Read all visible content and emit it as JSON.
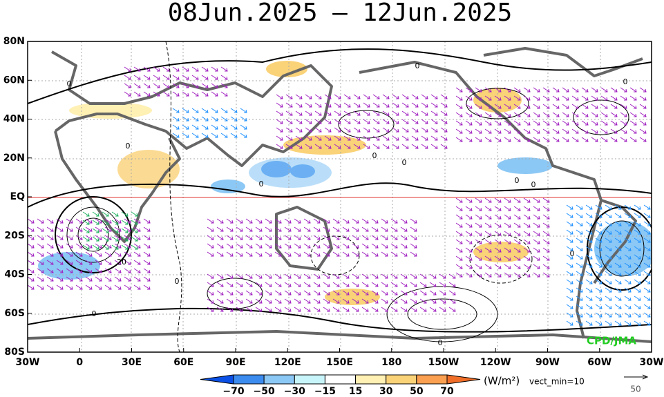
{
  "title": "08Jun.2025 – 12Jun.2025",
  "lat_labels": [
    "80N",
    "60N",
    "40N",
    "20N",
    "EQ",
    "20S",
    "40S",
    "60S",
    "80S"
  ],
  "lon_labels": [
    "30W",
    "0",
    "30E",
    "60E",
    "90E",
    "120E",
    "150E",
    "180",
    "150W",
    "120W",
    "90W",
    "60W",
    "30W"
  ],
  "colorbar": {
    "labels": [
      "−70",
      "−50",
      "−30",
      "−15",
      "15",
      "30",
      "50",
      "70"
    ],
    "colors": [
      "#0a50e6",
      "#3c8cf0",
      "#8cc8f5",
      "#c8f5fa",
      "#ffffff",
      "#fff0b4",
      "#fad278",
      "#faa050",
      "#f06e28"
    ],
    "units": "(W/m²)"
  },
  "vector_note": "vect_min=10",
  "reference_vector": "50",
  "credit": "CPD/JMA",
  "contour_labels": [
    "0",
    "0",
    "0",
    "0",
    "0",
    "0",
    "0",
    "0",
    "0",
    "0",
    "0",
    "20",
    "0",
    "0"
  ]
}
